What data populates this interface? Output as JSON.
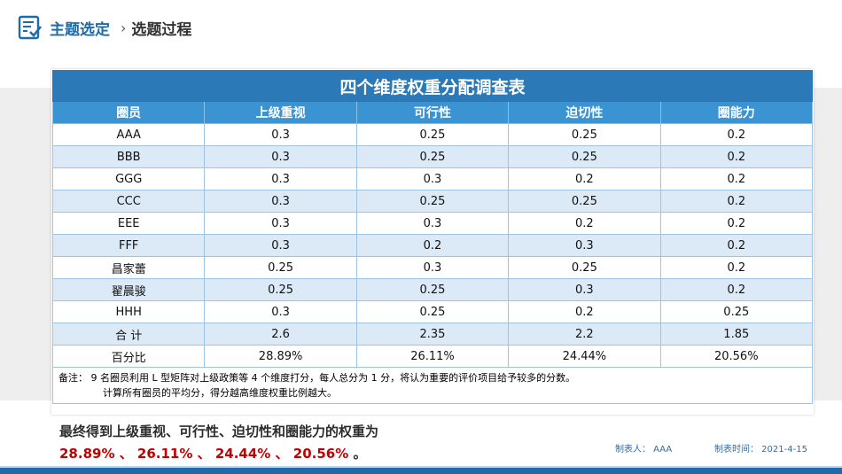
{
  "header": {
    "title": "主题选定",
    "separator": "›",
    "subtitle": "选题过程"
  },
  "table": {
    "caption": "四个维度权重分配调查表",
    "columns": [
      "圈员",
      "上级重视",
      "可行性",
      "迫切性",
      "圈能力"
    ],
    "rows": [
      [
        "AAA",
        "0.3",
        "0.25",
        "0.25",
        "0.2"
      ],
      [
        "BBB",
        "0.3",
        "0.25",
        "0.25",
        "0.2"
      ],
      [
        "GGG",
        "0.3",
        "0.3",
        "0.2",
        "0.2"
      ],
      [
        "CCC",
        "0.3",
        "0.25",
        "0.25",
        "0.2"
      ],
      [
        "EEE",
        "0.3",
        "0.3",
        "0.2",
        "0.2"
      ],
      [
        "FFF",
        "0.3",
        "0.2",
        "0.3",
        "0.2"
      ],
      [
        "昌家蕾",
        "0.25",
        "0.3",
        "0.25",
        "0.2"
      ],
      [
        "翟晨骏",
        "0.25",
        "0.25",
        "0.3",
        "0.2"
      ],
      [
        "HHH",
        "0.3",
        "0.25",
        "0.2",
        "0.25"
      ],
      [
        "合 计",
        "2.6",
        "2.35",
        "2.2",
        "1.85"
      ],
      [
        "百分比",
        "28.89%",
        "26.11%",
        "24.44%",
        "20.56%"
      ]
    ],
    "note_line1": "备注： 9 名圈员利用 L 型矩阵对上级政策等 4 个维度打分，每人总分为 1 分，将认为重要的评价项目给予较多的分数。",
    "note_line2": "计算所有圈员的平均分，得分越高维度权重比例越大。"
  },
  "conclusion": {
    "line1": "最终得到上级重视、可行性、迫切性和圈能力的权重为",
    "values": "28.89% 、 26.11% 、 24.44% 、 20.56%",
    "end": " 。"
  },
  "footer": {
    "maker": "制表人： AAA",
    "time": "制表时间： 2021-4-15"
  },
  "colors": {
    "brand": "#1f6aa8",
    "table_caption": "#2c79b8",
    "table_header": "#3b93d1",
    "stripe": "#dce9f6",
    "highlight": "#c00000"
  },
  "icons": {
    "logo": "checklist-icon"
  }
}
